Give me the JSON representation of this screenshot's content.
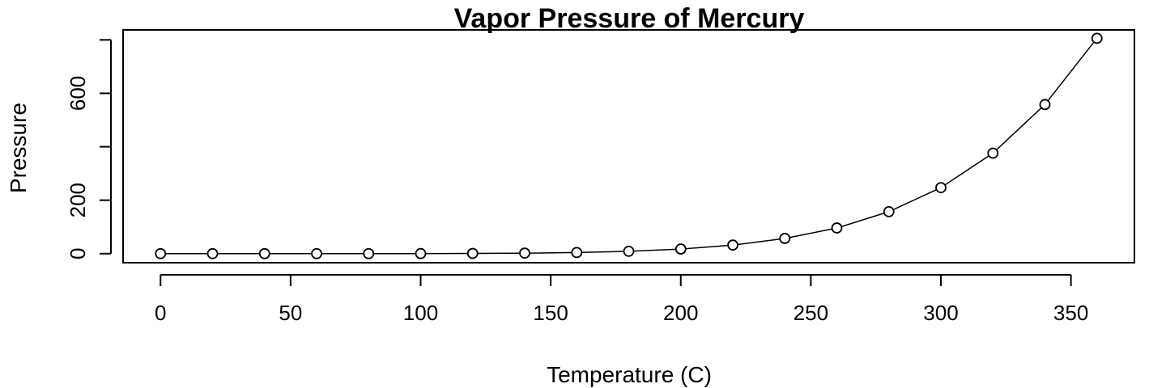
{
  "chart_data": {
    "type": "line",
    "title": "Vapor Pressure of Mercury",
    "xlabel": "Temperature (C)",
    "ylabel": "Pressure",
    "xlim": [
      -14.4,
      374.4
    ],
    "ylim": [
      -33.9,
      837.3
    ],
    "x_ticks": [
      0,
      50,
      100,
      150,
      200,
      250,
      300,
      350
    ],
    "y_ticks": [
      0,
      200,
      600
    ],
    "y_ticks_unlabeled": [
      400
    ],
    "grid": false,
    "legend": "none",
    "markers": "open-circle",
    "line_color": "#000000",
    "series": [
      {
        "x": [
          0,
          20,
          40,
          60,
          80,
          100,
          120,
          140,
          160,
          180,
          200,
          220,
          240,
          260,
          280,
          300,
          320,
          340,
          360
        ],
        "values": [
          0.0002,
          0.0012,
          0.006,
          0.03,
          0.09,
          0.27,
          0.75,
          1.85,
          4.2,
          8.8,
          17.3,
          32.1,
          57.0,
          96.0,
          157.0,
          247.0,
          376.0,
          558.0,
          806.0
        ]
      }
    ]
  }
}
